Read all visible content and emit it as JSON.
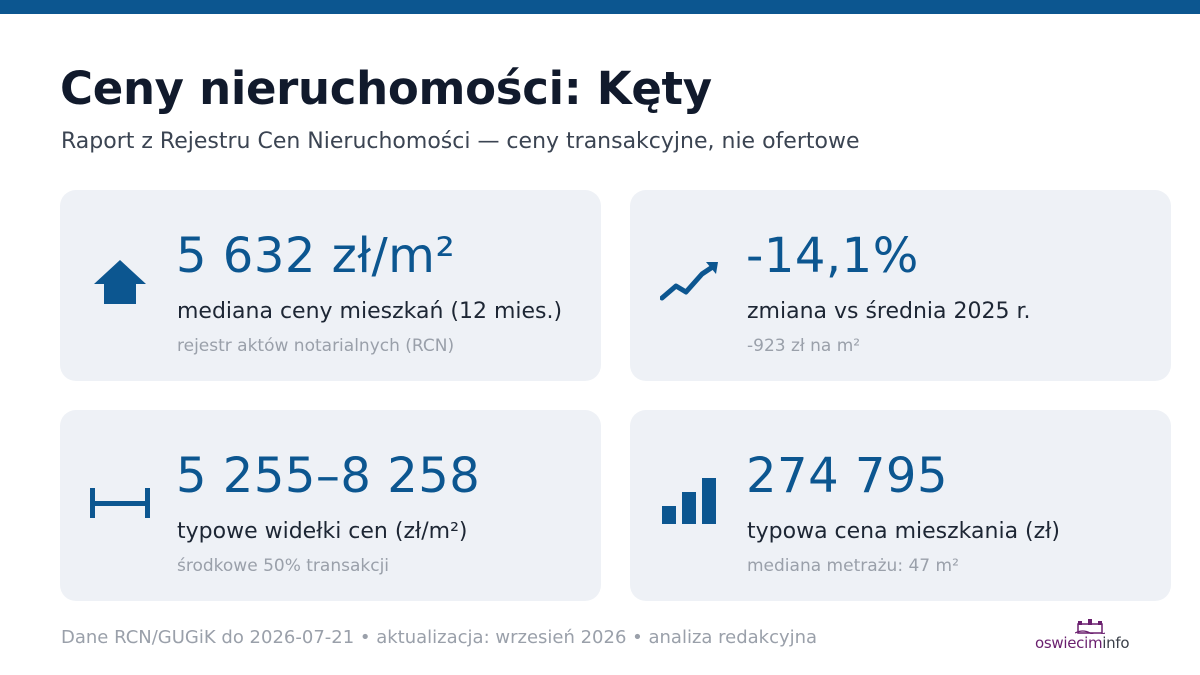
{
  "header": {
    "title": "Ceny nieruchomości: Kęty",
    "subtitle": "Raport z Rejestru Cen Nieruchomości — ceny transakcyjne, nie ofertowe"
  },
  "colors": {
    "accent": "#0c5690",
    "card_background": "#eef1f6",
    "title_text": "#111a2c",
    "muted_text": "#9aa0aa",
    "brand_purple": "#6a1f6e"
  },
  "cards": [
    {
      "icon": "house-icon",
      "value": "5 632 zł/m²",
      "label": "mediana ceny mieszkań (12 mies.)",
      "note": "rejestr aktów notarialnych (RCN)"
    },
    {
      "icon": "trend-line-icon",
      "value": "-14,1%",
      "label": "zmiana vs średnia 2025 r.",
      "note": "-923 zł na m²"
    },
    {
      "icon": "range-icon",
      "value": "5 255–8 258",
      "label": "typowe widełki cen (zł/m²)",
      "note": "środkowe 50% transakcji"
    },
    {
      "icon": "bar-chart-icon",
      "value": "274 795",
      "label": "typowa cena mieszkania (zł)",
      "note": "mediana metrażu: 47 m²"
    }
  ],
  "footer": {
    "text": "Dane RCN/GUGiK do 2026-07-21 • aktualizacja: wrzesień 2026 • analiza redakcyjna"
  },
  "brand": {
    "part1": "oswiecim",
    "part2": "info",
    "icon": "castle-logo-icon"
  }
}
